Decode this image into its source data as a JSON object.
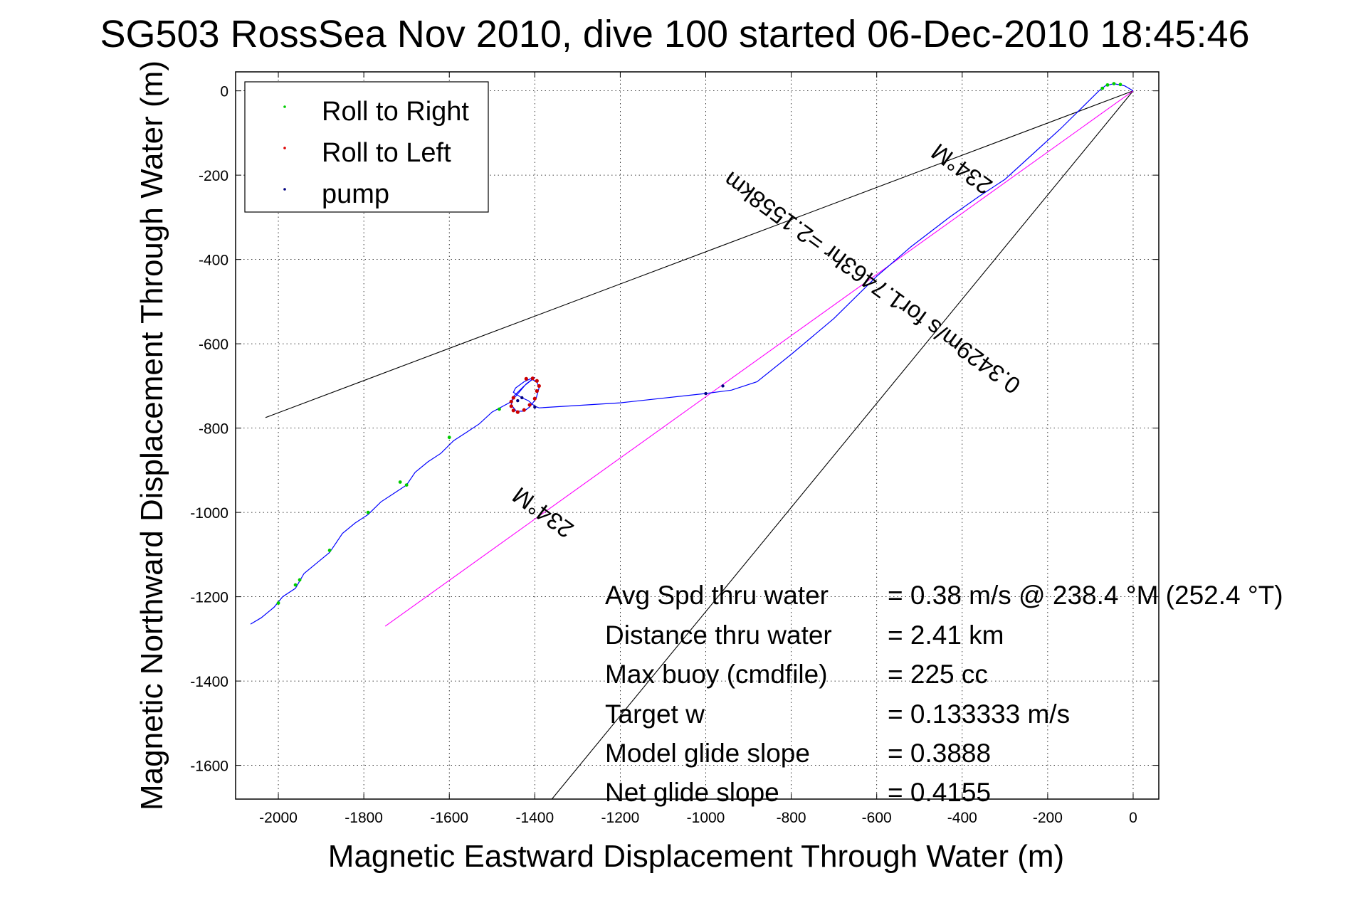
{
  "chart_data": {
    "type": "line",
    "title": "SG503 RossSea Nov 2010, dive 100 started 06-Dec-2010 18:45:46",
    "xlabel": "Magnetic Eastward Displacement Through Water (m)",
    "ylabel": "Magnetic Northward Displacement Through Water (m)",
    "xlim": [
      -2100,
      60
    ],
    "ylim": [
      -1680,
      45
    ],
    "grid": true,
    "x_ticks": [
      "-2000",
      "-1800",
      "-1600",
      "-1400",
      "-1200",
      "-1000",
      "-800",
      "-600",
      "-400",
      "-200",
      "0"
    ],
    "y_ticks": [
      "0",
      "-200",
      "-400",
      "-600",
      "-800",
      "-1000",
      "-1200",
      "-1400",
      "-1600"
    ],
    "legend": {
      "placement": "top-left",
      "entries": [
        {
          "label": "Roll to Right",
          "color": "#00cc00"
        },
        {
          "label": "Roll to Left",
          "color": "#dd0000"
        },
        {
          "label": "pump",
          "color": "#000080"
        }
      ]
    },
    "track": {
      "color": "#0000ff",
      "points": [
        [
          0,
          0
        ],
        [
          -20,
          12
        ],
        [
          -45,
          17
        ],
        [
          -65,
          12
        ],
        [
          -80,
          0
        ],
        [
          -120,
          -40
        ],
        [
          -170,
          -90
        ],
        [
          -235,
          -150
        ],
        [
          -300,
          -210
        ],
        [
          -360,
          -250
        ],
        [
          -430,
          -300
        ],
        [
          -520,
          -370
        ],
        [
          -600,
          -440
        ],
        [
          -700,
          -540
        ],
        [
          -800,
          -625
        ],
        [
          -880,
          -690
        ],
        [
          -940,
          -710
        ],
        [
          -1000,
          -718
        ],
        [
          -1200,
          -740
        ],
        [
          -1390,
          -752
        ],
        [
          -1400,
          -748
        ],
        [
          -1415,
          -735
        ],
        [
          -1430,
          -728
        ],
        [
          -1440,
          -722
        ],
        [
          -1450,
          -715
        ],
        [
          -1445,
          -705
        ],
        [
          -1425,
          -690
        ],
        [
          -1410,
          -683
        ],
        [
          -1395,
          -690
        ],
        [
          -1390,
          -705
        ],
        [
          -1397,
          -730
        ],
        [
          -1412,
          -750
        ],
        [
          -1425,
          -760
        ],
        [
          -1443,
          -760
        ],
        [
          -1455,
          -745
        ],
        [
          -1450,
          -725
        ],
        [
          -1440,
          -715
        ],
        [
          -1425,
          -700
        ],
        [
          -1400,
          -680
        ],
        [
          -1420,
          -695
        ],
        [
          -1445,
          -725
        ],
        [
          -1460,
          -740
        ],
        [
          -1500,
          -762
        ],
        [
          -1530,
          -790
        ],
        [
          -1560,
          -810
        ],
        [
          -1590,
          -830
        ],
        [
          -1620,
          -860
        ],
        [
          -1650,
          -880
        ],
        [
          -1680,
          -905
        ],
        [
          -1700,
          -935
        ],
        [
          -1730,
          -955
        ],
        [
          -1760,
          -975
        ],
        [
          -1790,
          -1005
        ],
        [
          -1820,
          -1025
        ],
        [
          -1850,
          -1050
        ],
        [
          -1880,
          -1095
        ],
        [
          -1910,
          -1120
        ],
        [
          -1940,
          -1145
        ],
        [
          -1960,
          -1180
        ],
        [
          -1990,
          -1200
        ],
        [
          -2010,
          -1225
        ],
        [
          -2040,
          -1250
        ],
        [
          -2065,
          -1265
        ]
      ]
    },
    "roll_right_points": [
      [
        -30,
        15
      ],
      [
        -45,
        17
      ],
      [
        -60,
        14
      ],
      [
        -72,
        6
      ],
      [
        -1483,
        -755
      ],
      [
        -1600,
        -822
      ],
      [
        -1700,
        -935
      ],
      [
        -1715,
        -928
      ],
      [
        -1790,
        -1000
      ],
      [
        -1880,
        -1090
      ],
      [
        -1950,
        -1160
      ],
      [
        -1960,
        -1172
      ],
      [
        -2000,
        -1215
      ]
    ],
    "roll_left_points": [
      [
        -1390,
        -700
      ],
      [
        -1395,
        -688
      ],
      [
        -1405,
        -682
      ],
      [
        -1420,
        -683
      ],
      [
        -1395,
        -712
      ],
      [
        -1400,
        -730
      ],
      [
        -1412,
        -745
      ],
      [
        -1425,
        -757
      ],
      [
        -1440,
        -762
      ],
      [
        -1450,
        -758
      ],
      [
        -1455,
        -748
      ],
      [
        -1455,
        -737
      ],
      [
        -1450,
        -728
      ]
    ],
    "pump_points": [
      [
        -1430,
        -728
      ],
      [
        -1440,
        -735
      ],
      [
        -1400,
        -750
      ],
      [
        -1000,
        -718
      ],
      [
        -960,
        -700
      ]
    ],
    "reference_lines": [
      {
        "color": "#000000",
        "points": [
          [
            0,
            0
          ],
          [
            -2030,
            -775
          ]
        ]
      },
      {
        "color": "#000000",
        "points": [
          [
            0,
            0
          ],
          [
            -1360,
            -1680
          ]
        ]
      },
      {
        "color": "#ff00ff",
        "points": [
          [
            0,
            0
          ],
          [
            -1750,
            -1270
          ]
        ]
      }
    ],
    "annotations": [
      {
        "text": "234°M",
        "x": -390,
        "y": -170,
        "rotate": 216
      },
      {
        "text": "0.3429m/s for1.7463hr =2.1558km",
        "x": -600,
        "y": -440,
        "rotate": 216
      },
      {
        "text": "234°M",
        "x": -1370,
        "y": -985,
        "rotate": 216
      }
    ],
    "stats": [
      {
        "label": "Avg Spd thru water",
        "value": "=  0.38 m/s @ 238.4 °M (252.4 °T)"
      },
      {
        "label": "Distance thru water",
        "value": "=  2.41 km"
      },
      {
        "label": "Max buoy (cmdfile)",
        "value": "= 225 cc"
      },
      {
        "label": "Target w",
        "value": "= 0.133333 m/s"
      },
      {
        "label": "Model glide slope",
        "value": "= 0.3888"
      },
      {
        "label": "Net glide slope",
        "value": "= 0.4155"
      }
    ]
  }
}
